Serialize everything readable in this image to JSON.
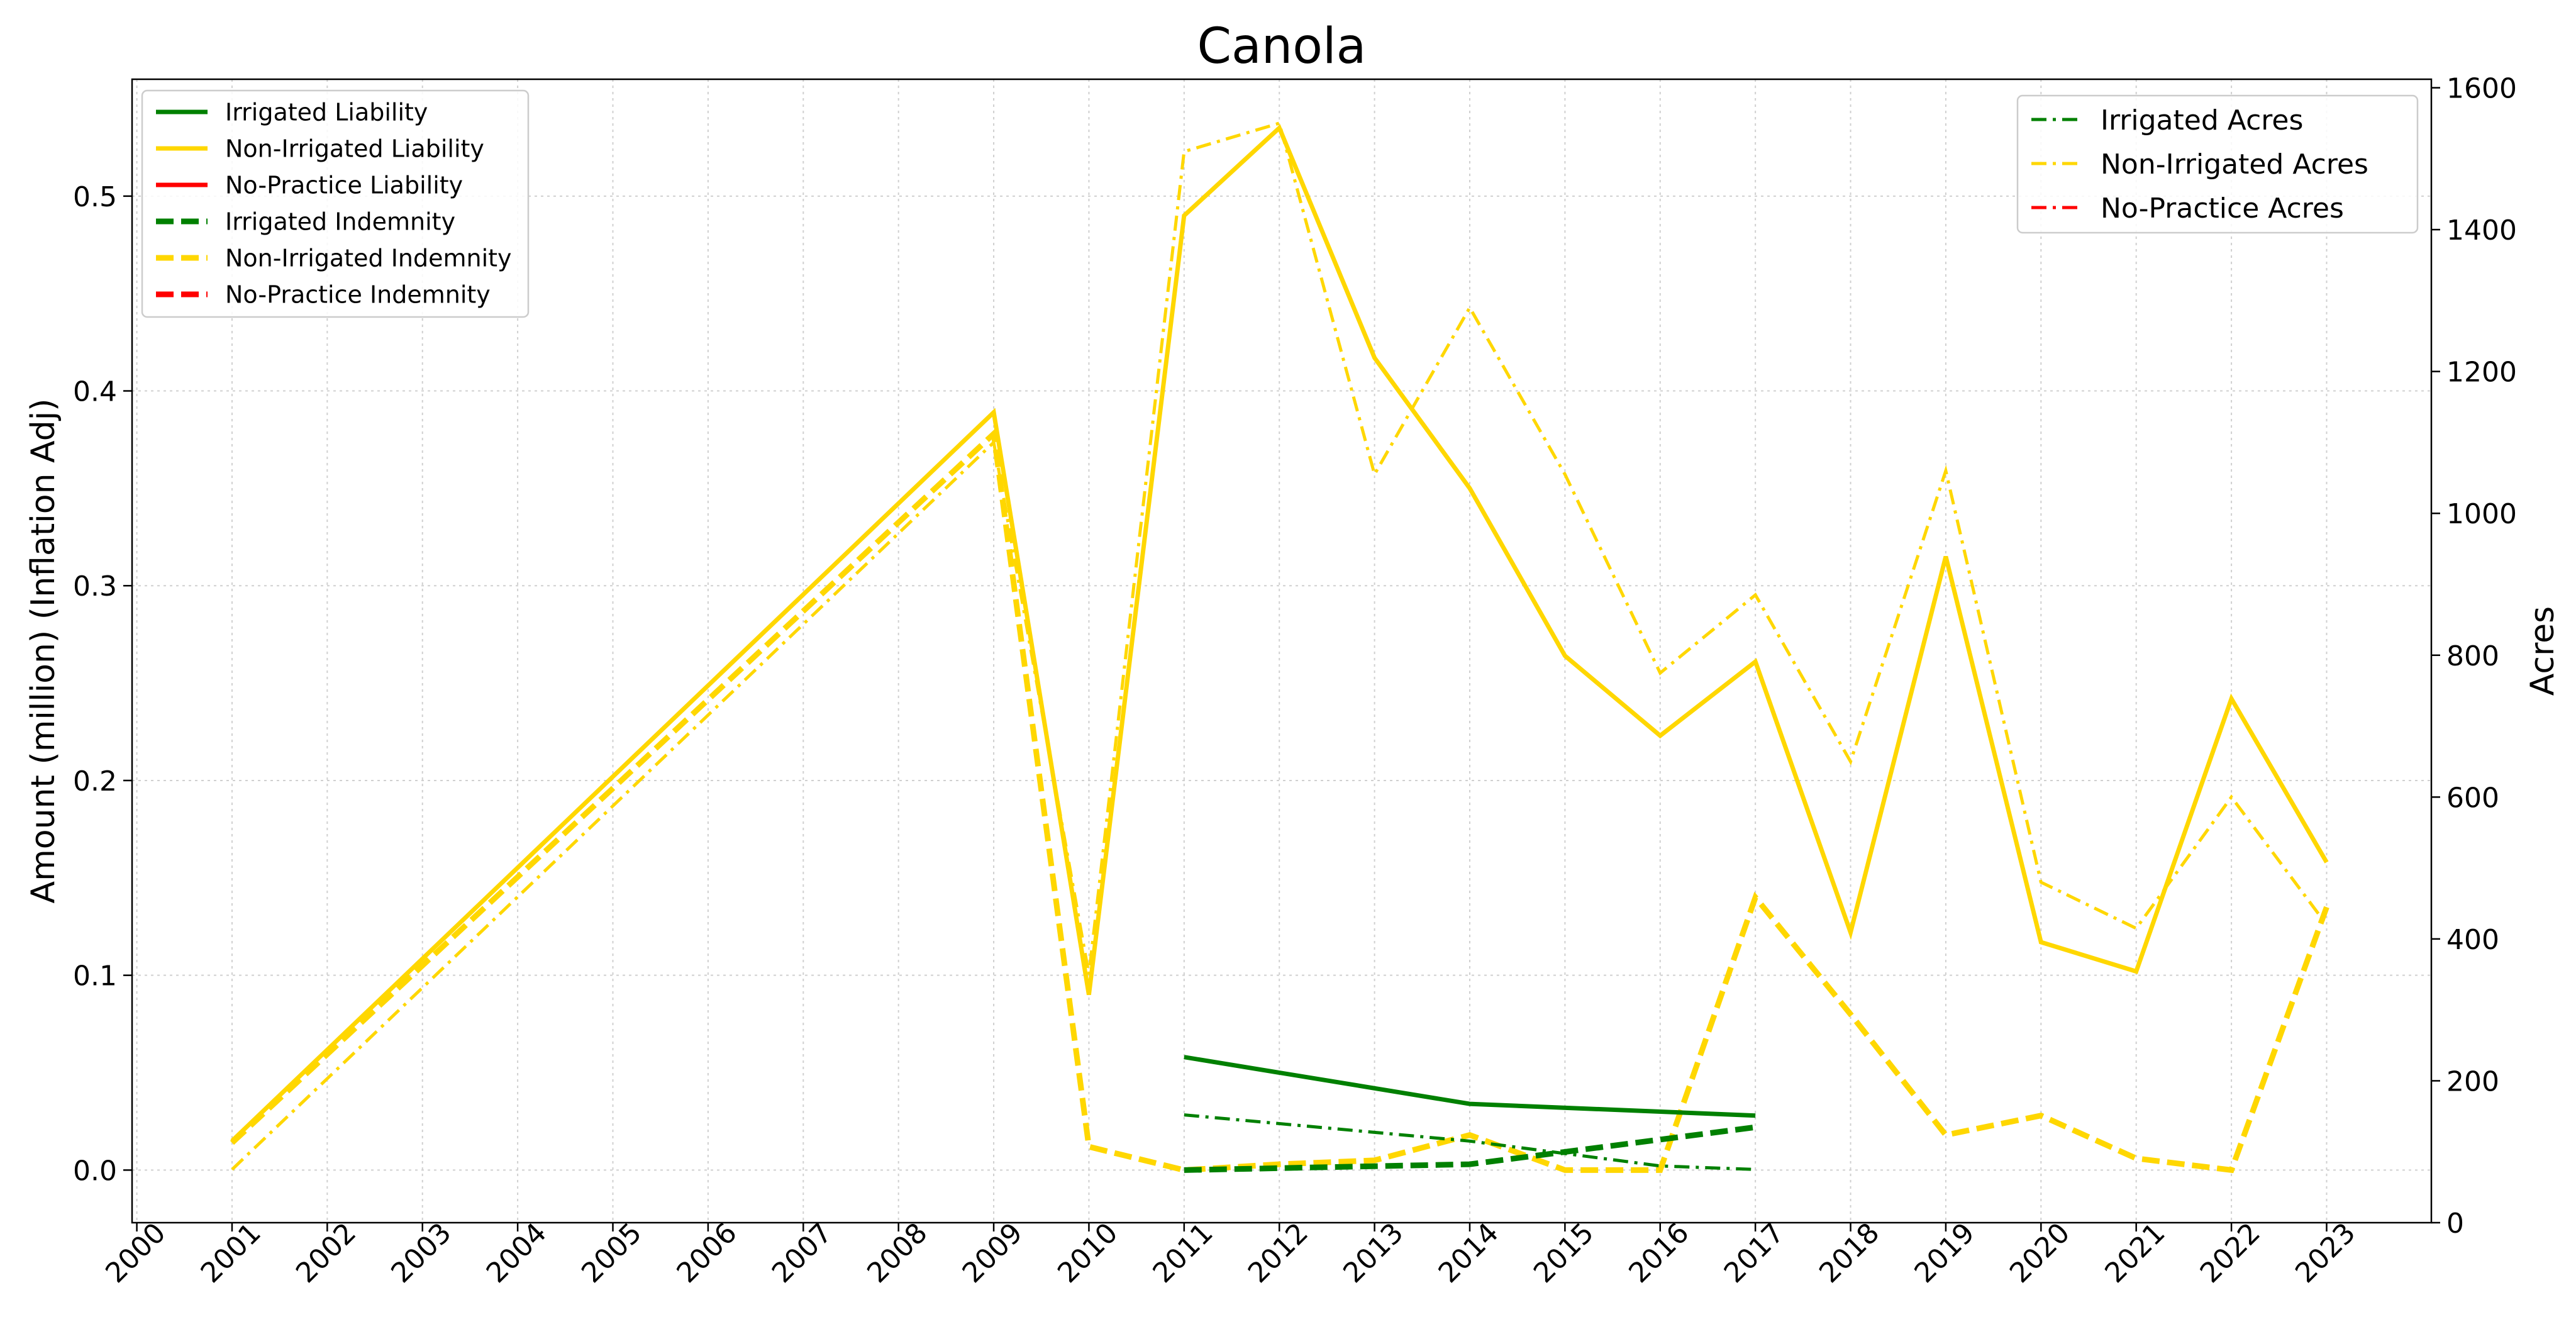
{
  "chart_data": {
    "type": "line",
    "title": "Canola",
    "xlabel": "",
    "ylabel": "Amount (million) (Inflation Adj)",
    "y2label": "Acres",
    "x_ticks": [
      "2000",
      "2001",
      "2002",
      "2003",
      "2004",
      "2005",
      "2006",
      "2007",
      "2008",
      "2009",
      "2010",
      "2011",
      "2012",
      "2013",
      "2014",
      "2015",
      "2016",
      "2017",
      "2018",
      "2019",
      "2020",
      "2021",
      "2022",
      "2023"
    ],
    "xlim": [
      1999.95,
      2024.1
    ],
    "ylim": [
      -0.027,
      0.56
    ],
    "y2lim": [
      0,
      1612
    ],
    "y_ticks": [
      0.0,
      0.1,
      0.2,
      0.3,
      0.4,
      0.5
    ],
    "y_tick_labels": [
      "0.0",
      "0.1",
      "0.2",
      "0.3",
      "0.4",
      "0.5"
    ],
    "y2_ticks": [
      0,
      200,
      400,
      600,
      800,
      1000,
      1200,
      1400,
      1600
    ],
    "y2_tick_labels": [
      "0",
      "200",
      "400",
      "600",
      "800",
      "1000",
      "1200",
      "1400",
      "1600"
    ],
    "grid": true,
    "colors": {
      "irrigated": "#008000",
      "non_irrigated": "#FFD700",
      "no_practice": "#FF0000"
    },
    "legend_left": {
      "placement": "top-left",
      "entries": [
        {
          "label": "Irrigated Liability",
          "color": "#008000",
          "style": "solid"
        },
        {
          "label": "Non-Irrigated Liability",
          "color": "#FFD700",
          "style": "solid"
        },
        {
          "label": "No-Practice Liability",
          "color": "#FF0000",
          "style": "solid"
        },
        {
          "label": "Irrigated Indemnity",
          "color": "#008000",
          "style": "dashed"
        },
        {
          "label": "Non-Irrigated Indemnity",
          "color": "#FFD700",
          "style": "dashed"
        },
        {
          "label": "No-Practice Indemnity",
          "color": "#FF0000",
          "style": "dashed"
        }
      ]
    },
    "legend_right": {
      "placement": "top-right",
      "entries": [
        {
          "label": "Irrigated Acres",
          "color": "#008000",
          "style": "dashdot"
        },
        {
          "label": "Non-Irrigated Acres",
          "color": "#FFD700",
          "style": "dashdot"
        },
        {
          "label": "No-Practice Acres",
          "color": "#FF0000",
          "style": "dashdot"
        }
      ]
    },
    "series": [
      {
        "name": "Non-Irrigated Liability",
        "axis": "left",
        "color": "#FFD700",
        "style": "solid",
        "x": [
          2001,
          2009,
          2010,
          2011,
          2012,
          2013,
          2014,
          2015,
          2016,
          2017,
          2018,
          2019,
          2020,
          2021,
          2022,
          2023
        ],
        "y": [
          0.015,
          0.389,
          0.09,
          0.49,
          0.535,
          0.417,
          0.35,
          0.264,
          0.223,
          0.261,
          0.122,
          0.315,
          0.117,
          0.102,
          0.242,
          0.158
        ]
      },
      {
        "name": "Non-Irrigated Indemnity",
        "axis": "left",
        "color": "#FFD700",
        "style": "dashed",
        "x": [
          2001,
          2009,
          2010,
          2011,
          2012,
          2013,
          2014,
          2015,
          2016,
          2017,
          2018,
          2019,
          2020,
          2021,
          2022,
          2023
        ],
        "y": [
          0.014,
          0.378,
          0.012,
          0.0,
          0.003,
          0.005,
          0.018,
          0.0,
          0.0,
          0.14,
          0.08,
          0.018,
          0.028,
          0.006,
          0.0,
          0.135
        ]
      },
      {
        "name": "Non-Irrigated Acres",
        "axis": "right",
        "color": "#FFD700",
        "style": "dashdot",
        "x": [
          2001,
          2009,
          2010,
          2011,
          2012,
          2013,
          2014,
          2015,
          2016,
          2017,
          2018,
          2019,
          2020,
          2021,
          2022,
          2023
        ],
        "y": [
          75,
          1100,
          350,
          1510,
          1550,
          1055,
          1290,
          1055,
          775,
          885,
          650,
          1060,
          480,
          415,
          600,
          420
        ]
      },
      {
        "name": "Irrigated Liability",
        "axis": "left",
        "color": "#008000",
        "style": "solid",
        "x": [
          2011,
          2014,
          2017
        ],
        "y": [
          0.058,
          0.034,
          0.028
        ]
      },
      {
        "name": "Irrigated Indemnity",
        "axis": "left",
        "color": "#008000",
        "style": "dashed",
        "x": [
          2011,
          2014,
          2017
        ],
        "y": [
          0.0,
          0.003,
          0.022
        ]
      },
      {
        "name": "Irrigated Acres",
        "axis": "right",
        "color": "#008000",
        "style": "dashdot",
        "x": [
          2011,
          2014,
          2016,
          2017
        ],
        "y": [
          152,
          115,
          80,
          75
        ]
      }
    ]
  }
}
